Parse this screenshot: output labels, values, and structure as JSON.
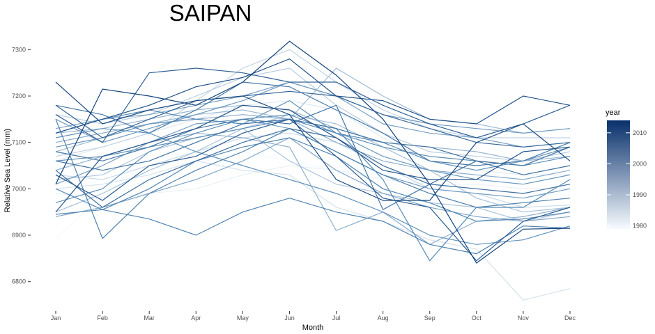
{
  "chart_data": {
    "type": "line",
    "title": "SAIPAN",
    "xlabel": "Month",
    "ylabel": "Relative Sea Level (mm)",
    "categories": [
      "Jan",
      "Feb",
      "Mar",
      "Apr",
      "May",
      "Jun",
      "Jul",
      "Aug",
      "Sep",
      "Oct",
      "Nov",
      "Dec"
    ],
    "ylim": [
      6745,
      7320
    ],
    "yticks": [
      6800,
      6900,
      7000,
      7100,
      7200,
      7300
    ],
    "grid": false,
    "legend": {
      "title": "year",
      "placement": "right",
      "ticks": [
        1980,
        1990,
        2000,
        2010
      ],
      "range": [
        1979,
        2014
      ]
    },
    "color_scale": {
      "low": "#f7fbff",
      "high": "#08306b"
    },
    "series": [
      {
        "year": 1979,
        "values": [
          6893,
          6985,
          7020,
          7055,
          7080,
          7060,
          7040,
          7030,
          7010,
          7000,
          6990,
          6985
        ]
      },
      {
        "year": 1980,
        "values": [
          6990,
          6980,
          6990,
          7000,
          7030,
          7050,
          7040,
          7020,
          7010,
          7010,
          7000,
          7000
        ]
      },
      {
        "year": 1981,
        "values": [
          7060,
          7090,
          7120,
          7150,
          7180,
          7190,
          7170,
          7110,
          7060,
          7040,
          7030,
          7030
        ]
      },
      {
        "year": 1982,
        "values": [
          7000,
          7010,
          7030,
          7060,
          7040,
          7030,
          6960,
          6930,
          6890,
          6870,
          6760,
          6785
        ]
      },
      {
        "year": 1983,
        "values": [
          7030,
          7020,
          7050,
          7080,
          7110,
          7120,
          7100,
          7050,
          7000,
          6990,
          6960,
          6965
        ]
      },
      {
        "year": 1984,
        "values": [
          7070,
          7090,
          7120,
          7190,
          7260,
          7300,
          7230,
          7170,
          7130,
          7110,
          7110,
          7110
        ]
      },
      {
        "year": 1985,
        "values": [
          7160,
          7140,
          7160,
          7200,
          7240,
          7260,
          7180,
          7120,
          7080,
          7070,
          7060,
          7080
        ]
      },
      {
        "year": 1986,
        "values": [
          7020,
          7030,
          7080,
          7110,
          7130,
          7060,
          7010,
          6990,
          6970,
          6960,
          6930,
          6950
        ]
      },
      {
        "year": 1987,
        "values": [
          6950,
          6990,
          7040,
          7080,
          7130,
          7160,
          7140,
          7090,
          7040,
          6980,
          6950,
          6960
        ]
      },
      {
        "year": 1988,
        "values": [
          7080,
          7110,
          7140,
          7160,
          7170,
          7150,
          7260,
          7200,
          7150,
          7140,
          7120,
          7130
        ]
      },
      {
        "year": 1989,
        "values": [
          7120,
          7130,
          7150,
          7170,
          7180,
          7170,
          7130,
          7100,
          7090,
          7080,
          7060,
          7070
        ]
      },
      {
        "year": 1990,
        "values": [
          7040,
          7070,
          7100,
          7120,
          7110,
          7090,
          6910,
          6950,
          6880,
          6930,
          6940,
          6960
        ]
      },
      {
        "year": 1991,
        "values": [
          7100,
          7120,
          7140,
          7150,
          7160,
          7150,
          7100,
          7060,
          7040,
          7030,
          7020,
          7040
        ]
      },
      {
        "year": 1992,
        "values": [
          6940,
          6960,
          6990,
          7020,
          7060,
          7110,
          7040,
          6990,
          6960,
          6940,
          6930,
          6940
        ]
      },
      {
        "year": 1993,
        "values": [
          7130,
          7150,
          7160,
          7180,
          7200,
          7230,
          7200,
          7140,
          7120,
          7110,
          7090,
          7100
        ]
      },
      {
        "year": 1994,
        "values": [
          7010,
          7050,
          7100,
          7140,
          7150,
          7130,
          7080,
          7030,
          7000,
          6990,
          6980,
          7000
        ]
      },
      {
        "year": 1995,
        "values": [
          7150,
          7100,
          7130,
          7160,
          7190,
          7230,
          7200,
          7160,
          7140,
          7130,
          7120,
          7130
        ]
      },
      {
        "year": 1996,
        "values": [
          7090,
          7110,
          7140,
          7150,
          7140,
          7190,
          7120,
          7070,
          7040,
          7020,
          7010,
          7030
        ]
      },
      {
        "year": 1997,
        "values": [
          7110,
          7130,
          7120,
          7080,
          7050,
          7020,
          6990,
          6950,
          6900,
          6880,
          6890,
          6920
        ]
      },
      {
        "year": 1998,
        "values": [
          6970,
          7000,
          7080,
          7120,
          7150,
          7160,
          7120,
          7100,
          7060,
          7040,
          7060,
          7090
        ]
      },
      {
        "year": 1999,
        "values": [
          7060,
          7070,
          7090,
          7110,
          7130,
          7150,
          7120,
          7090,
          7070,
          7060,
          7050,
          7070
        ]
      },
      {
        "year": 2000,
        "values": [
          7120,
          7150,
          7170,
          7150,
          7140,
          7150,
          7130,
          7020,
          6845,
          6960,
          6960,
          7020
        ]
      },
      {
        "year": 2001,
        "values": [
          7000,
          6955,
          7000,
          7060,
          7090,
          7110,
          7070,
          7000,
          6970,
          6930,
          6935,
          6950
        ]
      },
      {
        "year": 2002,
        "values": [
          6945,
          6955,
          6935,
          6900,
          6950,
          6980,
          6950,
          6930,
          6880,
          6860,
          6920,
          6915
        ]
      },
      {
        "year": 2003,
        "values": [
          7150,
          6893,
          6990,
          7040,
          7080,
          7130,
          7080,
          7030,
          6990,
          6960,
          6970,
          6980
        ]
      },
      {
        "year": 2004,
        "values": [
          7180,
          7160,
          7120,
          7170,
          7230,
          7220,
          7170,
          7120,
          7060,
          7050,
          7060,
          7100
        ]
      },
      {
        "year": 2005,
        "values": [
          7080,
          7060,
          7090,
          7130,
          7150,
          7140,
          7180,
          6955,
          7010,
          7060,
          7050,
          7090
        ]
      },
      {
        "year": 2006,
        "values": [
          7060,
          7040,
          7060,
          7100,
          7140,
          7150,
          7130,
          7100,
          7090,
          7060,
          7030,
          7050
        ]
      },
      {
        "year": 2007,
        "values": [
          7040,
          6960,
          7020,
          7060,
          7100,
          7130,
          7110,
          7050,
          7010,
          7000,
          6990,
          7010
        ]
      },
      {
        "year": 2008,
        "values": [
          7180,
          7110,
          7150,
          7190,
          7200,
          7210,
          7200,
          7160,
          7130,
          7100,
          7090,
          7100
        ]
      },
      {
        "year": 2009,
        "values": [
          7160,
          7100,
          7250,
          7260,
          7250,
          7230,
          7230,
          7180,
          7140,
          7110,
          7140,
          7180
        ]
      },
      {
        "year": 2010,
        "values": [
          7030,
          6975,
          7050,
          7070,
          7120,
          7150,
          7070,
          6980,
          6960,
          6845,
          6930,
          6960
        ]
      },
      {
        "year": 2011,
        "values": [
          6950,
          7070,
          7100,
          7130,
          7180,
          7170,
          7110,
          7040,
          7020,
          7020,
          7080,
          7090
        ]
      },
      {
        "year": 2012,
        "values": [
          7120,
          7150,
          7180,
          7220,
          7240,
          7280,
          7200,
          7190,
          7150,
          7140,
          7200,
          7180
        ]
      },
      {
        "year": 2013,
        "values": [
          7230,
          7140,
          7170,
          7190,
          7200,
          7160,
          7020,
          6975,
          6975,
          7100,
          7140,
          7060
        ]
      },
      {
        "year": 2014,
        "values": [
          7010,
          7215,
          7200,
          7180,
          7230,
          7318,
          7245,
          7150,
          7010,
          6840,
          6913,
          6915
        ]
      }
    ]
  }
}
